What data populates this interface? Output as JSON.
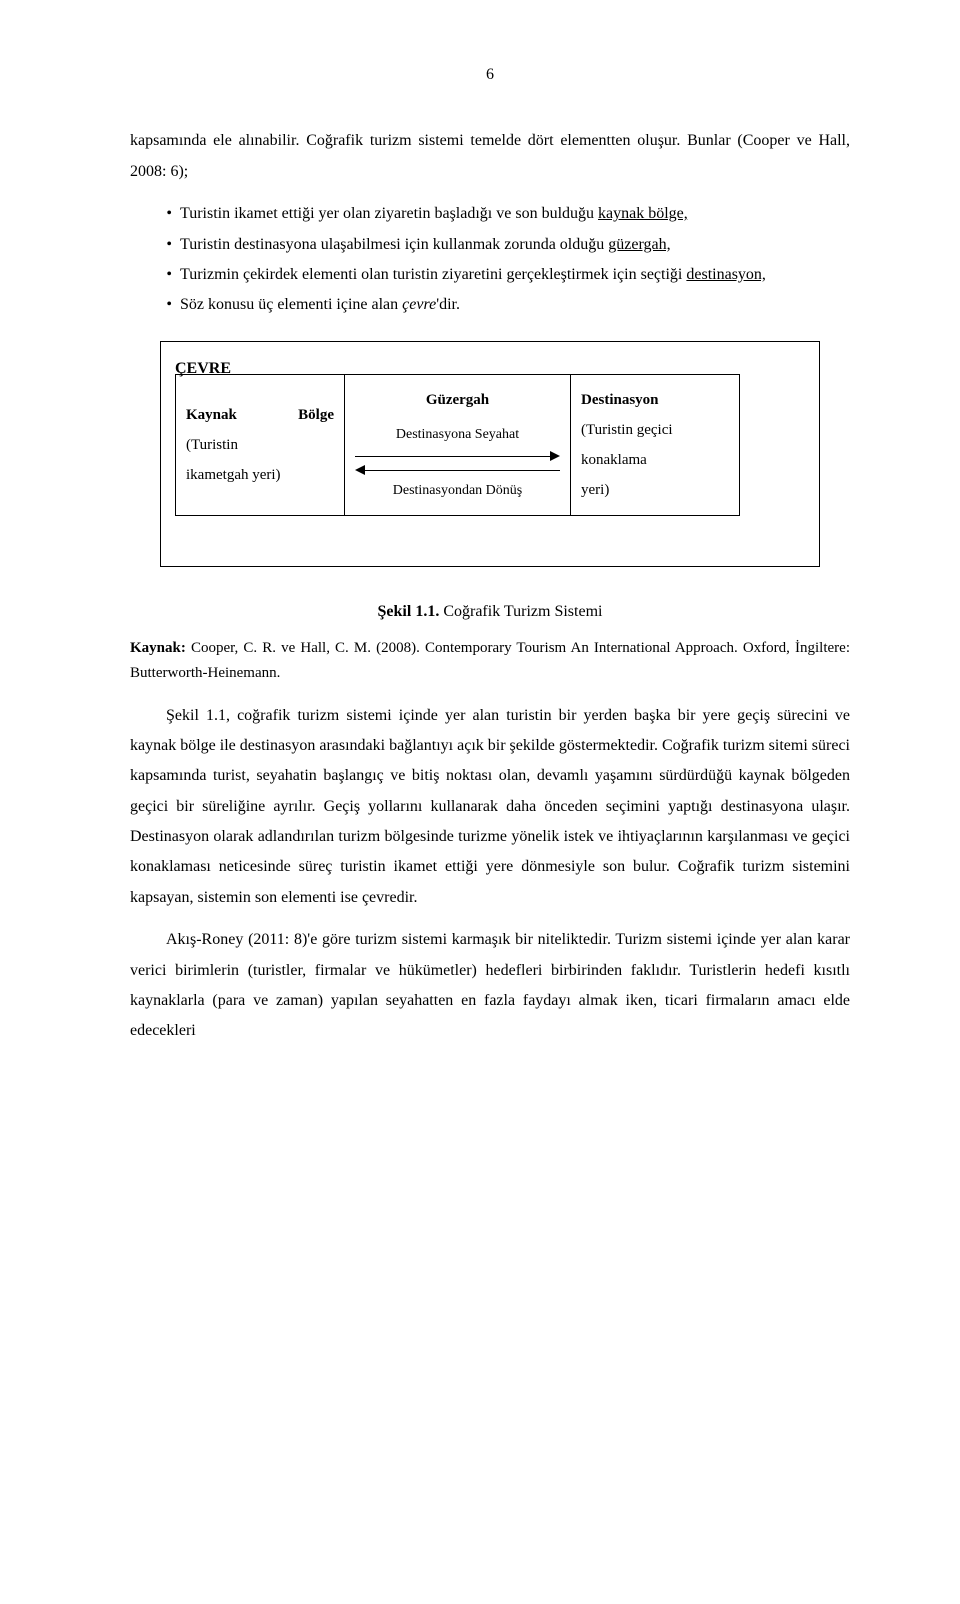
{
  "page_number": "6",
  "para_intro": "kapsamında ele alınabilir. Coğrafik turizm sistemi temelde dört elementten oluşur. Bunlar (Cooper ve Hall, 2008: 6);",
  "bullets": [
    {
      "pre": "Turistin ikamet ettiği yer olan ziyaretin başladığı ve son bulduğu ",
      "u": "kaynak bölge,",
      "post": ""
    },
    {
      "pre": "Turistin destinasyona ulaşabilmesi için kullanmak zorunda olduğu ",
      "u": "güzergah,",
      "post": ""
    },
    {
      "pre": "Turizmin çekirdek elementi olan turistin ziyaretini gerçekleştirmek için seçtiği ",
      "u": "destinasyon,",
      "post": ""
    },
    {
      "pre": "Söz konusu üç elementi içine alan ",
      "i": "çevre",
      "post": "'dir."
    }
  ],
  "diagram": {
    "outer_label": "ÇEVRE",
    "left": {
      "l1a": "Kaynak",
      "l1b": "Bölge",
      "l2": "(Turistin",
      "l3": "ikametgah yeri)"
    },
    "mid": {
      "title": "Güzergah",
      "top_arrow": "Destinasyona Seyahat",
      "bottom_arrow": "Destinasyondan Dönüş"
    },
    "right": {
      "l1": "Destinasyon",
      "l2": "(Turistin geçici",
      "l3": "konaklama",
      "l4": "yeri)"
    }
  },
  "figure_caption_bold": "Şekil 1.1.",
  "figure_caption_rest": " Coğrafik Turizm Sistemi",
  "source_bold": "Kaynak:",
  "source_rest": " Cooper, C. R. ve Hall, C. M. (2008). Contemporary Tourism An International Approach. Oxford, İngiltere: Butterworth-Heinemann.",
  "para_mid": "Şekil 1.1, coğrafik turizm sistemi içinde yer alan turistin bir yerden başka bir yere geçiş sürecini ve kaynak bölge ile destinasyon arasındaki bağlantıyı açık bir şekilde göstermektedir. Coğrafik turizm sitemi süreci kapsamında turist, seyahatin başlangıç ve bitiş noktası olan, devamlı yaşamını sürdürdüğü kaynak bölgeden geçici bir süreliğine ayrılır. Geçiş yollarını kullanarak daha önceden seçimini yaptığı destinasyona ulaşır. Destinasyon olarak adlandırılan turizm bölgesinde turizme yönelik istek ve ihtiyaçlarının karşılanması ve geçici konaklaması neticesinde süreç turistin ikamet ettiği yere dönmesiyle son bulur. Coğrafik turizm sistemini kapsayan, sistemin son elementi ise çevredir.",
  "para_last": "Akış-Roney (2011: 8)'e göre turizm sistemi karmaşık bir niteliktedir. Turizm sistemi içinde yer alan karar verici birimlerin (turistler, firmalar ve hükümetler) hedefleri birbirinden faklıdır. Turistlerin hedefi kısıtlı kaynaklarla (para ve zaman) yapılan seyahatten en fazla faydayı almak iken, ticari firmaların amacı elde edecekleri"
}
